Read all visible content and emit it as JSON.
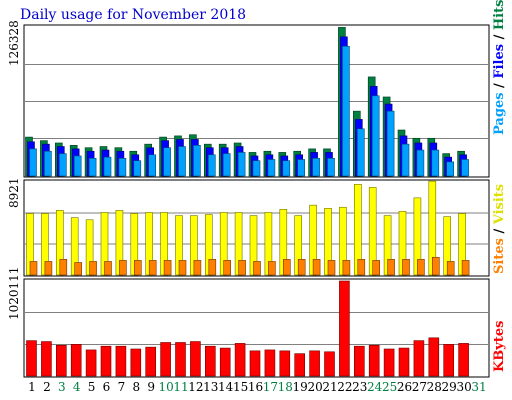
{
  "chart_data": [
    {
      "type": "bar",
      "title": "Daily usage for November 2018",
      "y_max_label": "126328",
      "legend": [
        {
          "text": "Pages",
          "color": "#00a0ff"
        },
        {
          "text": " / ",
          "color": "#000000"
        },
        {
          "text": "Files",
          "color": "#0000ff"
        },
        {
          "text": " / ",
          "color": "#000000"
        },
        {
          "text": "Hits",
          "color": "#008040"
        }
      ],
      "colors": {
        "hits": "#008040",
        "files": "#0000ff",
        "pages": "#00a0ff"
      },
      "ylim": [
        0,
        126328
      ],
      "grid": true,
      "series": [
        {
          "name": "Hits",
          "values": [
            33000,
            30000,
            28000,
            26000,
            24000,
            25000,
            24000,
            21000,
            27000,
            33000,
            34000,
            35000,
            27000,
            27000,
            28000,
            20000,
            21000,
            20000,
            21000,
            23000,
            23000,
            126000,
            55000,
            84000,
            67000,
            39000,
            32000,
            32000,
            19000,
            21000
          ]
        },
        {
          "name": "Files",
          "values": [
            29000,
            27000,
            25000,
            23000,
            21000,
            22000,
            21000,
            18000,
            24000,
            30000,
            31000,
            31000,
            24000,
            24000,
            25000,
            17000,
            18000,
            17000,
            18000,
            20000,
            20000,
            118000,
            48000,
            76000,
            61000,
            34000,
            28000,
            28000,
            16000,
            18000
          ]
        },
        {
          "name": "Pages",
          "values": [
            23000,
            21000,
            19000,
            17000,
            15000,
            16000,
            15000,
            13000,
            18000,
            24000,
            25000,
            26000,
            18000,
            19000,
            20000,
            13000,
            14000,
            13000,
            14000,
            15000,
            15000,
            110000,
            40000,
            68000,
            55000,
            27000,
            22000,
            22000,
            12000,
            14000
          ]
        }
      ]
    },
    {
      "type": "bar",
      "y_max_label": "8921",
      "legend": [
        {
          "text": "Sites",
          "color": "#ff8000"
        },
        {
          "text": " / ",
          "color": "#000000"
        },
        {
          "text": "Visits",
          "color": "#e0e000"
        }
      ],
      "colors": {
        "visits": "#ffff00",
        "sites": "#ff8000"
      },
      "ylim": [
        0,
        8921
      ],
      "grid": true,
      "series": [
        {
          "name": "Visits",
          "values": [
            5900,
            5900,
            6200,
            5500,
            5300,
            6000,
            6200,
            5900,
            6000,
            6000,
            5700,
            5700,
            5800,
            6000,
            6000,
            5700,
            6000,
            6300,
            5700,
            6700,
            6400,
            6500,
            8700,
            8400,
            5700,
            6100,
            7400,
            9000,
            5600,
            5900
          ]
        },
        {
          "name": "Sites",
          "values": [
            1300,
            1300,
            1500,
            1200,
            1300,
            1300,
            1400,
            1400,
            1400,
            1400,
            1400,
            1400,
            1500,
            1400,
            1400,
            1300,
            1300,
            1500,
            1500,
            1500,
            1400,
            1400,
            1500,
            1400,
            1500,
            1500,
            1500,
            1700,
            1300,
            1400
          ]
        }
      ]
    },
    {
      "type": "bar",
      "y_max_label": "1020111",
      "legend": [
        {
          "text": "KBytes",
          "color": "#ff0000"
        }
      ],
      "colors": {
        "kbytes": "#ff0000"
      },
      "ylim": [
        0,
        1020111
      ],
      "grid": true,
      "series": [
        {
          "name": "KBytes",
          "values": [
            380000,
            370000,
            330000,
            340000,
            280000,
            320000,
            320000,
            290000,
            310000,
            360000,
            360000,
            370000,
            320000,
            300000,
            350000,
            270000,
            280000,
            270000,
            240000,
            270000,
            260000,
            1020111,
            320000,
            330000,
            290000,
            300000,
            380000,
            410000,
            340000,
            350000
          ]
        }
      ]
    }
  ],
  "x_labels": [
    "1",
    "2",
    "3",
    "4",
    "5",
    "6",
    "7",
    "8",
    "9",
    "10",
    "11",
    "12",
    "13",
    "14",
    "15",
    "16",
    "17",
    "18",
    "19",
    "20",
    "21",
    "22",
    "23",
    "24",
    "25",
    "26",
    "27",
    "28",
    "29",
    "30",
    "31"
  ],
  "x_label_colors": [
    "#000000",
    "#000000",
    "#008040",
    "#008040",
    "#000000",
    "#000000",
    "#000000",
    "#000000",
    "#000000",
    "#008040",
    "#008040",
    "#000000",
    "#000000",
    "#000000",
    "#000000",
    "#000000",
    "#008040",
    "#008040",
    "#000000",
    "#000000",
    "#000000",
    "#000000",
    "#000000",
    "#008040",
    "#008040",
    "#000000",
    "#000000",
    "#000000",
    "#000000",
    "#000000",
    "#008040"
  ]
}
